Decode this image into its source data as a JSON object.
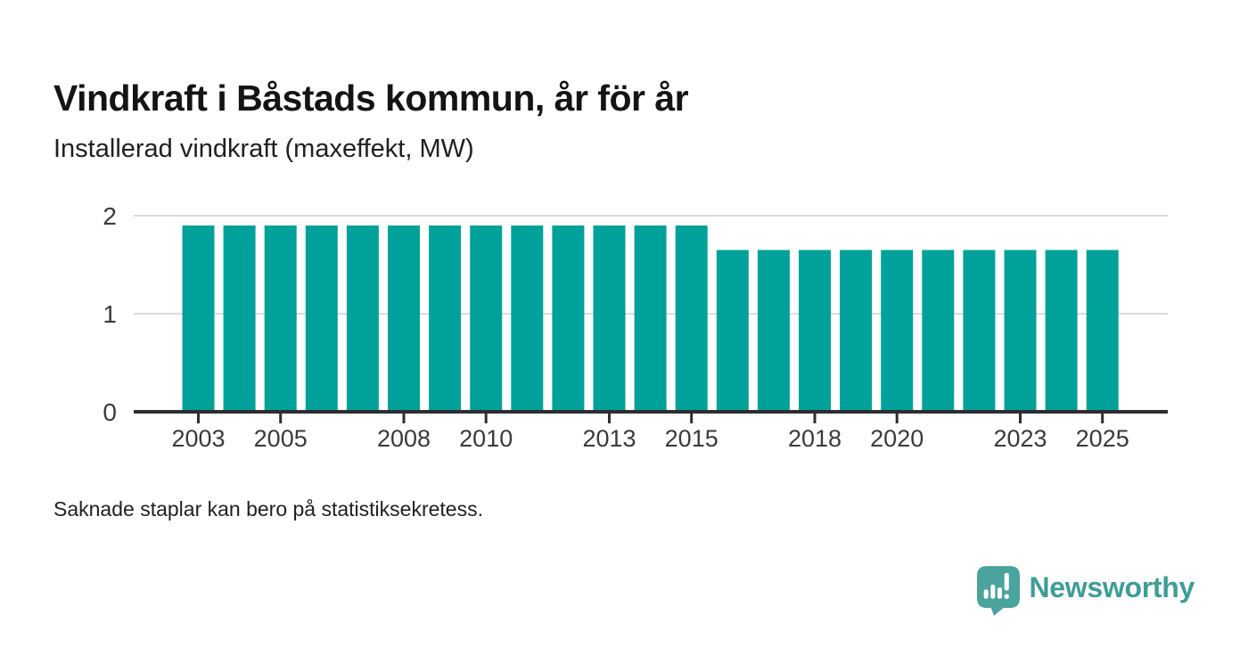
{
  "chart_data": {
    "type": "bar",
    "title": "Vindkraft i Båstads kommun, år för år",
    "subtitle": "Installerad vindkraft (maxeffekt, MW)",
    "ylabel": "MW",
    "categories": [
      2003,
      2004,
      2005,
      2006,
      2007,
      2008,
      2009,
      2010,
      2011,
      2012,
      2013,
      2014,
      2015,
      2016,
      2017,
      2018,
      2019,
      2020,
      2021,
      2022,
      2023,
      2024,
      2025
    ],
    "values": [
      1.9,
      1.9,
      1.9,
      1.9,
      1.9,
      1.9,
      1.9,
      1.9,
      1.9,
      1.9,
      1.9,
      1.9,
      1.9,
      1.65,
      1.65,
      1.65,
      1.65,
      1.65,
      1.65,
      1.65,
      1.65,
      1.65,
      1.65
    ],
    "xtick_labels": [
      2003,
      2005,
      2008,
      2010,
      2013,
      2015,
      2018,
      2020,
      2023,
      2025
    ],
    "ytick_labels": [
      0,
      1,
      2
    ],
    "ylim": [
      0,
      2
    ],
    "grid": "horizontal",
    "legend": "none",
    "bar_color": "#00a19a",
    "grid_color": "#dcdcdc",
    "axis_color": "#2e2e2e",
    "tick_label_color": "#3a3a3a"
  },
  "footer": {
    "note": "Saknade staplar kan bero på statistiksekretess."
  },
  "branding": {
    "logo_text": "Newsworthy",
    "logo_text_color": "#3e9d96",
    "logo_icon": "newsworthy-speech-bubble-bar-chart-icon",
    "logo_icon_color": "#4aa39c",
    "logo_icon_marks_color": "#ffffff"
  }
}
